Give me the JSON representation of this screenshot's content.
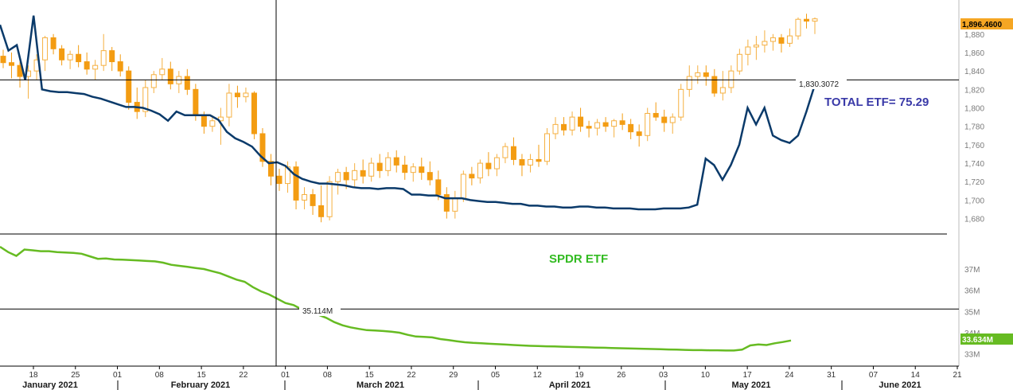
{
  "chart_data": [
    {
      "type": "candlestick",
      "panel": "top",
      "y_axis_side": "right",
      "ylim": [
        1665,
        1910
      ],
      "y_ticks": [
        "1,680",
        "1,700",
        "1,720",
        "1,740",
        "1,760",
        "1,780",
        "1,800",
        "1,820",
        "1,840",
        "1,860",
        "1,880"
      ],
      "y_tick_values": [
        1680,
        1700,
        1720,
        1740,
        1760,
        1780,
        1800,
        1820,
        1840,
        1860,
        1880
      ],
      "last_price_label": "1,896.4600",
      "last_price_value": 1896.46,
      "crosshair_value_label": "1,830.3072",
      "crosshair_value": 1830.3072,
      "annotation": "TOTAL ETF= 75.29",
      "annotation_color": "#3a3aa8",
      "up_color": "#f5b041",
      "down_color": "#f39c12",
      "candles_ohlc": [
        [
          1856,
          1863,
          1843,
          1849
        ],
        [
          1849,
          1860,
          1832,
          1846
        ],
        [
          1846,
          1850,
          1822,
          1834
        ],
        [
          1834,
          1846,
          1810,
          1840
        ],
        [
          1840,
          1858,
          1830,
          1852
        ],
        [
          1852,
          1878,
          1840,
          1876
        ],
        [
          1876,
          1880,
          1858,
          1864
        ],
        [
          1864,
          1868,
          1846,
          1852
        ],
        [
          1852,
          1862,
          1842,
          1858
        ],
        [
          1858,
          1868,
          1844,
          1850
        ],
        [
          1850,
          1860,
          1836,
          1842
        ],
        [
          1842,
          1852,
          1830,
          1846
        ],
        [
          1846,
          1880,
          1840,
          1862
        ],
        [
          1862,
          1866,
          1840,
          1850
        ],
        [
          1850,
          1858,
          1834,
          1840
        ],
        [
          1840,
          1845,
          1798,
          1806
        ],
        [
          1806,
          1822,
          1788,
          1796
        ],
        [
          1796,
          1830,
          1790,
          1822
        ],
        [
          1822,
          1840,
          1816,
          1836
        ],
        [
          1836,
          1854,
          1830,
          1842
        ],
        [
          1842,
          1850,
          1820,
          1826
        ],
        [
          1826,
          1840,
          1816,
          1834
        ],
        [
          1834,
          1842,
          1814,
          1820
        ],
        [
          1820,
          1826,
          1786,
          1792
        ],
        [
          1792,
          1796,
          1772,
          1780
        ],
        [
          1780,
          1792,
          1774,
          1786
        ],
        [
          1786,
          1800,
          1760,
          1790
        ],
        [
          1790,
          1826,
          1780,
          1816
        ],
        [
          1816,
          1824,
          1800,
          1812
        ],
        [
          1812,
          1822,
          1806,
          1816
        ],
        [
          1816,
          1818,
          1766,
          1772
        ],
        [
          1772,
          1778,
          1736,
          1742
        ],
        [
          1742,
          1750,
          1716,
          1726
        ],
        [
          1726,
          1734,
          1710,
          1718
        ],
        [
          1718,
          1742,
          1708,
          1736
        ],
        [
          1736,
          1742,
          1690,
          1700
        ],
        [
          1700,
          1714,
          1690,
          1706
        ],
        [
          1706,
          1712,
          1684,
          1694
        ],
        [
          1694,
          1716,
          1676,
          1682
        ],
        [
          1682,
          1726,
          1678,
          1720
        ],
        [
          1720,
          1734,
          1706,
          1730
        ],
        [
          1730,
          1736,
          1712,
          1722
        ],
        [
          1722,
          1740,
          1714,
          1732
        ],
        [
          1732,
          1744,
          1718,
          1726
        ],
        [
          1726,
          1746,
          1720,
          1740
        ],
        [
          1740,
          1750,
          1724,
          1732
        ],
        [
          1732,
          1752,
          1726,
          1746
        ],
        [
          1746,
          1754,
          1730,
          1738
        ],
        [
          1738,
          1748,
          1722,
          1730
        ],
        [
          1730,
          1740,
          1720,
          1736
        ],
        [
          1736,
          1746,
          1722,
          1730
        ],
        [
          1730,
          1742,
          1716,
          1722
        ],
        [
          1722,
          1732,
          1700,
          1706
        ],
        [
          1706,
          1714,
          1680,
          1688
        ],
        [
          1688,
          1710,
          1680,
          1702
        ],
        [
          1702,
          1732,
          1698,
          1728
        ],
        [
          1728,
          1736,
          1716,
          1724
        ],
        [
          1724,
          1744,
          1718,
          1740
        ],
        [
          1740,
          1752,
          1726,
          1734
        ],
        [
          1734,
          1750,
          1726,
          1746
        ],
        [
          1746,
          1762,
          1740,
          1758
        ],
        [
          1758,
          1768,
          1738,
          1744
        ],
        [
          1744,
          1750,
          1726,
          1738
        ],
        [
          1738,
          1750,
          1730,
          1744
        ],
        [
          1744,
          1760,
          1736,
          1742
        ],
        [
          1742,
          1778,
          1738,
          1772
        ],
        [
          1772,
          1790,
          1766,
          1782
        ],
        [
          1782,
          1790,
          1770,
          1776
        ],
        [
          1776,
          1796,
          1770,
          1790
        ],
        [
          1790,
          1800,
          1774,
          1780
        ],
        [
          1780,
          1786,
          1768,
          1778
        ],
        [
          1778,
          1788,
          1770,
          1784
        ],
        [
          1784,
          1790,
          1774,
          1780
        ],
        [
          1780,
          1788,
          1768,
          1786
        ],
        [
          1786,
          1794,
          1776,
          1782
        ],
        [
          1782,
          1788,
          1766,
          1774
        ],
        [
          1774,
          1782,
          1758,
          1770
        ],
        [
          1770,
          1800,
          1764,
          1794
        ],
        [
          1794,
          1806,
          1786,
          1790
        ],
        [
          1790,
          1798,
          1774,
          1784
        ],
        [
          1784,
          1794,
          1772,
          1790
        ],
        [
          1790,
          1826,
          1786,
          1820
        ],
        [
          1820,
          1846,
          1812,
          1834
        ],
        [
          1834,
          1846,
          1826,
          1838
        ],
        [
          1838,
          1846,
          1824,
          1834
        ],
        [
          1834,
          1842,
          1812,
          1816
        ],
        [
          1816,
          1840,
          1808,
          1822
        ],
        [
          1822,
          1846,
          1816,
          1840
        ],
        [
          1840,
          1864,
          1836,
          1858
        ],
        [
          1858,
          1874,
          1846,
          1866
        ],
        [
          1866,
          1878,
          1852,
          1868
        ],
        [
          1868,
          1884,
          1860,
          1872
        ],
        [
          1872,
          1880,
          1862,
          1876
        ],
        [
          1876,
          1880,
          1860,
          1870
        ],
        [
          1870,
          1886,
          1866,
          1878
        ],
        [
          1878,
          1898,
          1874,
          1896
        ],
        [
          1896,
          1902,
          1886,
          1894
        ],
        [
          1894,
          1898,
          1880,
          1896.46
        ]
      ],
      "total_etf_series": [
        1890,
        1862,
        1868,
        1830,
        1900,
        1820,
        1818,
        1817,
        1817,
        1816,
        1815,
        1812,
        1810,
        1807,
        1804,
        1801,
        1801,
        1800,
        1797,
        1793,
        1786,
        1796,
        1792,
        1792,
        1792,
        1792,
        1787,
        1774,
        1767,
        1763,
        1758,
        1748,
        1740,
        1741,
        1737,
        1728,
        1723,
        1720,
        1718,
        1718,
        1717,
        1716,
        1714,
        1713,
        1713,
        1712,
        1713,
        1713,
        1712,
        1706,
        1706,
        1705,
        1705,
        1702,
        1702,
        1702,
        1700,
        1699,
        1698,
        1698,
        1697,
        1696,
        1696,
        1694,
        1694,
        1693,
        1693,
        1692,
        1692,
        1693,
        1693,
        1692,
        1692,
        1691,
        1691,
        1691,
        1690,
        1690,
        1690,
        1691,
        1691,
        1691,
        1692,
        1695,
        1745,
        1738,
        1722,
        1738,
        1760,
        1800,
        1782,
        1800,
        1770,
        1765,
        1762,
        1770,
        1796,
        1825
      ],
      "total_etf_color": "#0a3a6a"
    },
    {
      "type": "line",
      "panel": "bottom",
      "y_axis_side": "right",
      "ylim": [
        32.5,
        38.5
      ],
      "y_ticks": [
        "33M",
        "34M",
        "35M",
        "36M",
        "37M"
      ],
      "y_tick_values": [
        33,
        34,
        35,
        36,
        37
      ],
      "series_color": "#66bb22",
      "last_value_label": "33.634M",
      "crosshair_value_label": "35.114M",
      "crosshair_value": 35.114,
      "annotation": "SPDR ETF",
      "annotation_color": "#33bb22",
      "series_values": [
        38.05,
        37.8,
        37.62,
        37.92,
        37.88,
        37.84,
        37.84,
        37.8,
        37.78,
        37.76,
        37.72,
        37.6,
        37.48,
        37.5,
        37.45,
        37.44,
        37.42,
        37.4,
        37.38,
        37.36,
        37.3,
        37.2,
        37.15,
        37.1,
        37.05,
        37.0,
        36.9,
        36.8,
        36.65,
        36.5,
        36.4,
        36.15,
        35.95,
        35.8,
        35.6,
        35.4,
        35.3,
        35.1,
        34.95,
        34.85,
        34.7,
        34.5,
        34.35,
        34.25,
        34.18,
        34.12,
        34.1,
        34.08,
        34.05,
        34.0,
        33.9,
        33.82,
        33.8,
        33.78,
        33.7,
        33.65,
        33.6,
        33.55,
        33.52,
        33.5,
        33.48,
        33.46,
        33.44,
        33.42,
        33.4,
        33.38,
        33.37,
        33.36,
        33.35,
        33.34,
        33.33,
        33.32,
        33.31,
        33.3,
        33.29,
        33.28,
        33.27,
        33.26,
        33.25,
        33.24,
        33.23,
        33.22,
        33.21,
        33.2,
        33.19,
        33.18,
        33.18,
        33.17,
        33.17,
        33.16,
        33.16,
        33.2,
        33.4,
        33.45,
        33.42,
        33.5,
        33.56,
        33.634
      ]
    }
  ],
  "x_axis": {
    "day_ticks": [
      "18",
      "25",
      "01",
      "08",
      "15",
      "22",
      "01",
      "08",
      "15",
      "22",
      "29",
      "05",
      "12",
      "19",
      "26",
      "03",
      "10",
      "17",
      "24",
      "31",
      "07",
      "14",
      "21"
    ],
    "months": [
      "January 2021",
      "February 2021",
      "March 2021",
      "April 2021",
      "May 2021",
      "June 2021"
    ]
  }
}
